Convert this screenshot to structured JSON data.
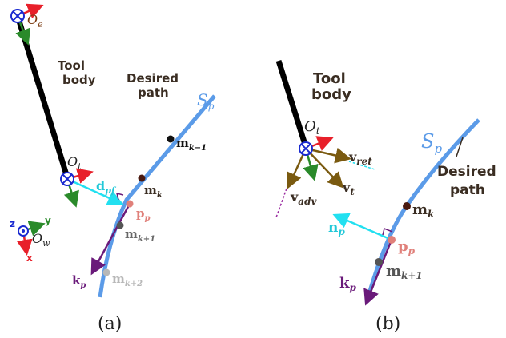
{
  "panel_a": {
    "caption": "(a)",
    "tool_label_1": "Tool",
    "tool_label_2": "body",
    "path_label_1": "Desired",
    "path_label_2": "path",
    "sp": "S",
    "sp_sub": "p",
    "oe": "O",
    "oe_sub": "e",
    "ot": "O",
    "ot_sub": "t",
    "ow": "O",
    "ow_sub": "w",
    "axis_z": "z",
    "axis_y": "y",
    "axis_x": "x",
    "d_pf": "d",
    "d_pf_sub": "pf",
    "m_km1": "m",
    "m_km1_sub": "k−1",
    "m_k": "m",
    "m_k_sub": "k",
    "p_p": "p",
    "p_p_sub": "p",
    "m_kp1": "m",
    "m_kp1_sub": "k+1",
    "k_p": "k",
    "k_p_sub": "p",
    "m_kp2": "m",
    "m_kp2_sub": "k+2"
  },
  "panel_b": {
    "caption": "(b)",
    "tool_label_1": "Tool",
    "tool_label_2": "body",
    "path_label_1": "Desired",
    "path_label_2": "path",
    "sp": "S",
    "sp_sub": "p",
    "ot": "O",
    "ot_sub": "t",
    "v_ret": "v",
    "v_ret_sub": "ret",
    "v_t": "v",
    "v_t_sub": "t",
    "v_adv": "v",
    "v_adv_sub": "adv",
    "n_p": "n",
    "n_p_sub": "p",
    "p_p": "p",
    "p_p_sub": "p",
    "m_k": "m",
    "m_k_sub": "k",
    "m_kp1": "m",
    "m_kp1_sub": "k+1",
    "k_p": "k",
    "k_p_sub": "p"
  },
  "colors": {
    "path_blue": "#5b9be8",
    "cyan": "#22e0f0",
    "red": "#e8202a",
    "green": "#2a8a2a",
    "purple": "#6a1a7a",
    "olive": "#7a5a10",
    "frame_blue": "#1a2ad0",
    "brown_text": "#3a2d22",
    "point_pink": "#e0807a",
    "point_dark": "#4a1a10",
    "gray": "#666666",
    "light_gray": "#b8b8b8"
  }
}
